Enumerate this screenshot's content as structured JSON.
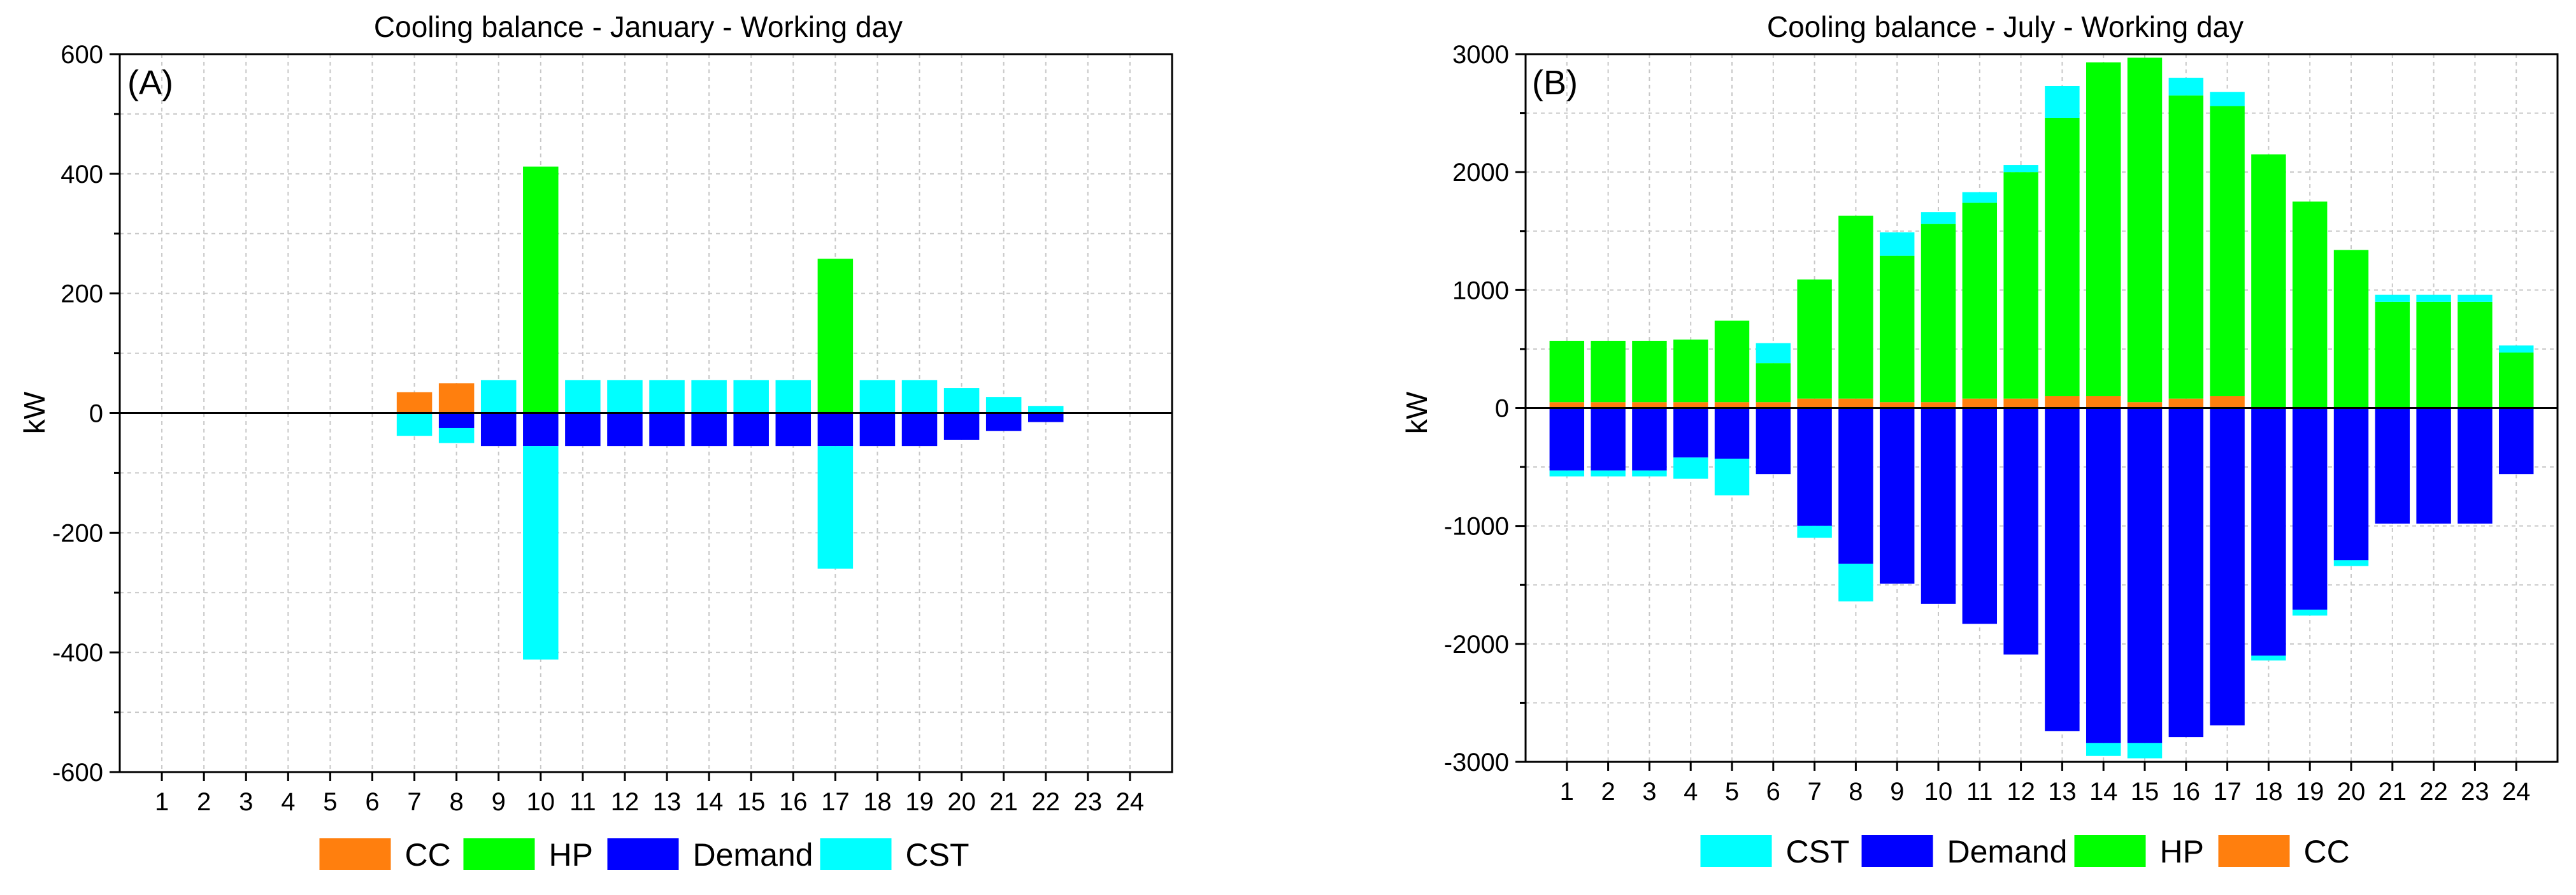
{
  "chart_data": [
    {
      "type": "bar",
      "panel_label": "(A)",
      "title": "Cooling balance - January - Working day",
      "xlabel": "",
      "ylabel": "kW",
      "ylim": [
        -600,
        600
      ],
      "yticks": [
        -600,
        -400,
        -200,
        0,
        200,
        400,
        600
      ],
      "categories": [
        "1",
        "2",
        "3",
        "4",
        "5",
        "6",
        "7",
        "8",
        "9",
        "10",
        "11",
        "12",
        "13",
        "14",
        "15",
        "16",
        "17",
        "18",
        "19",
        "20",
        "21",
        "22",
        "23",
        "24"
      ],
      "grid": true,
      "stacked": true,
      "series": [
        {
          "name": "CC",
          "color": "#ff7f0e",
          "values": [
            0,
            0,
            0,
            0,
            0,
            0,
            35,
            50,
            0,
            0,
            0,
            0,
            0,
            0,
            0,
            0,
            0,
            0,
            0,
            0,
            0,
            0,
            0,
            0
          ]
        },
        {
          "name": "HP",
          "color": "#00ff00",
          "values": [
            0,
            0,
            0,
            0,
            0,
            0,
            0,
            0,
            0,
            412,
            0,
            0,
            0,
            0,
            0,
            0,
            258,
            0,
            0,
            0,
            0,
            0,
            0,
            0
          ]
        },
        {
          "name": "Demand",
          "color": "#0000ff",
          "values": [
            0,
            0,
            0,
            0,
            0,
            0,
            0,
            -25,
            -55,
            -55,
            -55,
            -55,
            -55,
            -55,
            -55,
            -55,
            -55,
            -55,
            -55,
            -45,
            -30,
            -15,
            0,
            0
          ]
        },
        {
          "name": "CST",
          "color": "#00ffff",
          "values": [
            0,
            0,
            0,
            0,
            0,
            0,
            -38,
            -25,
            55,
            -357,
            55,
            55,
            55,
            55,
            55,
            55,
            -205,
            55,
            55,
            42,
            27,
            12,
            0,
            0
          ]
        }
      ],
      "legend": [
        "CC",
        "HP",
        "Demand",
        "CST"
      ],
      "legend_position": "bottom"
    },
    {
      "type": "bar",
      "panel_label": "(B)",
      "title": "Cooling balance - July - Working day",
      "xlabel": "",
      "ylabel": "kW",
      "ylim": [
        -3000,
        3000
      ],
      "yticks": [
        -3000,
        -2000,
        -1000,
        0,
        1000,
        2000,
        3000
      ],
      "categories": [
        "1",
        "2",
        "3",
        "4",
        "5",
        "6",
        "7",
        "8",
        "9",
        "10",
        "11",
        "12",
        "13",
        "14",
        "15",
        "16",
        "17",
        "18",
        "19",
        "20",
        "21",
        "22",
        "23",
        "24"
      ],
      "grid": true,
      "stacked": true,
      "series": [
        {
          "name": "CC",
          "color": "#ff7f0e",
          "values": [
            50,
            50,
            50,
            50,
            50,
            50,
            80,
            80,
            50,
            50,
            80,
            80,
            100,
            100,
            50,
            80,
            100,
            0,
            0,
            0,
            0,
            0,
            0,
            0
          ]
        },
        {
          "name": "HP",
          "color": "#00ff00",
          "values": [
            520,
            520,
            520,
            530,
            690,
            330,
            1010,
            1550,
            1240,
            1510,
            1660,
            1920,
            2360,
            2830,
            2920,
            2570,
            2460,
            2150,
            1750,
            1340,
            900,
            900,
            900,
            470
          ]
        },
        {
          "name": "Demand",
          "color": "#0000ff",
          "values": [
            -530,
            -530,
            -530,
            -420,
            -430,
            -560,
            -1000,
            -1320,
            -1490,
            -1660,
            -1830,
            -2090,
            -2740,
            -2840,
            -2840,
            -2790,
            -2690,
            -2100,
            -1710,
            -1290,
            -980,
            -980,
            -980,
            -560
          ]
        },
        {
          "name": "CST",
          "color": "#00ffff",
          "values": [
            -50,
            -50,
            -50,
            -180,
            -310,
            170,
            -100,
            -320,
            200,
            100,
            90,
            60,
            270,
            -110,
            -130,
            150,
            120,
            -40,
            -50,
            -50,
            60,
            60,
            60,
            60
          ]
        }
      ],
      "legend": [
        "CST",
        "Demand",
        "HP",
        "CC"
      ],
      "legend_position": "bottom"
    }
  ]
}
